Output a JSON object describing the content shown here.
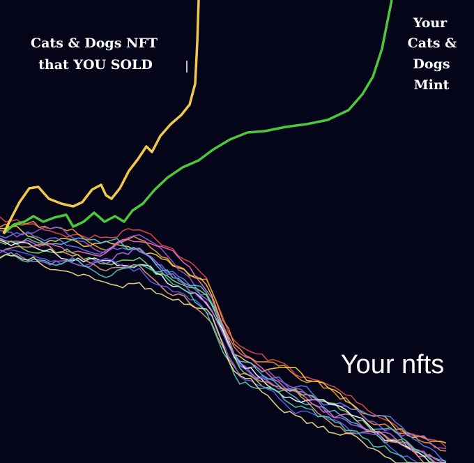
{
  "meme": {
    "sold_label": {
      "lines": [
        "Cats & Dogs NFT",
        "that YOU SOLD"
      ]
    },
    "mint_label": {
      "lines": [
        "Your",
        "Cats &",
        "Dogs",
        "Mint"
      ]
    },
    "nfts_label": "Your nfts"
  }
}
